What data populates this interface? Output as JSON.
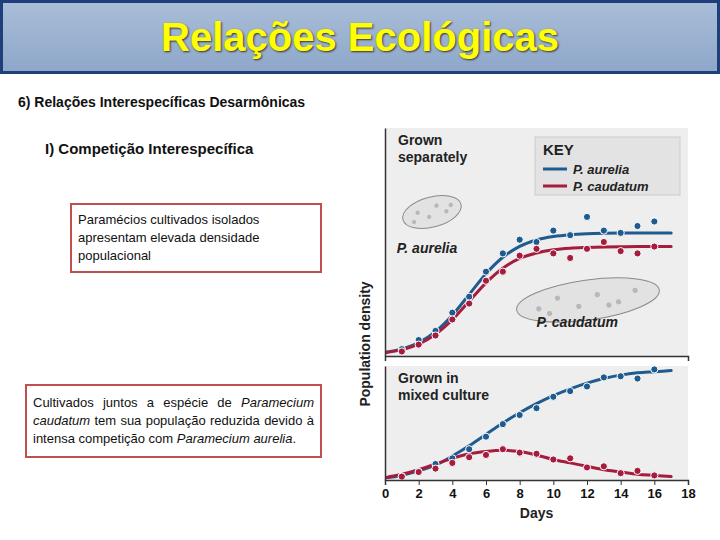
{
  "page": {
    "title": "Relações Ecológicas",
    "subtitle": "6) Relações Interespecíficas Desarmônicas",
    "heading": "I) Competição Interespecífica",
    "box1": "Paramécios cultivados isolados apresentam elevada densidade populacional",
    "box2": [
      {
        "text": "Cultivados juntos a espécie de "
      },
      {
        "text": "Paramecium caudatum",
        "italic": true
      },
      {
        "text": " tem sua população reduzida devido à intensa competição com "
      },
      {
        "text": "Paramecium aurelia",
        "italic": true
      },
      {
        "text": "."
      }
    ]
  },
  "chart_data": [
    {
      "type": "line",
      "title": "Grown\nseparately",
      "ylabel": "Population density",
      "xlim": [
        0,
        18
      ],
      "ylim": [
        0,
        100
      ],
      "tick_labels": false,
      "legend": "upper right",
      "legend_title": "KEY",
      "annotations": [
        {
          "text": "P. aurelia",
          "x": 0.7,
          "y": 45
        },
        {
          "text": "P. caudatum",
          "x": 9,
          "y": 12.7
        }
      ],
      "series": [
        {
          "name": "P. aurelia",
          "type": "line",
          "color": "#1f5b8e",
          "line_style": "solid",
          "x": [
            0,
            1,
            2,
            3,
            4,
            5,
            6,
            7,
            8,
            9,
            10,
            11,
            12,
            13,
            14,
            15,
            16,
            17
          ],
          "values": [
            1.6,
            3.1,
            5.9,
            10.7,
            17.9,
            27,
            36.1,
            43.3,
            48.1,
            50.9,
            52.4,
            53.2,
            53.6,
            53.8,
            53.9,
            54,
            54,
            54
          ]
        },
        {
          "name": "P. caudatum",
          "type": "line",
          "color": "#a51c3c",
          "line_style": "solid",
          "x": [
            0,
            1,
            2,
            3,
            4,
            5,
            6,
            7,
            8,
            9,
            10,
            11,
            12,
            13,
            14,
            15,
            16,
            17
          ],
          "values": [
            1.4,
            2.8,
            5.2,
            9.5,
            15.9,
            24,
            32.1,
            38.5,
            42.8,
            45.2,
            46.6,
            47.3,
            47.6,
            47.8,
            47.9,
            48,
            48,
            48
          ]
        },
        {
          "type": "scatter",
          "color": "#1f5b8e",
          "marker": "circle",
          "x": [
            1,
            2,
            3,
            4,
            5,
            6,
            7,
            8,
            9,
            10,
            11,
            12,
            13,
            14,
            15,
            16
          ],
          "values": [
            3,
            7,
            11,
            19,
            26,
            37,
            45,
            51,
            50,
            55,
            53,
            61,
            55,
            54,
            57,
            59
          ]
        },
        {
          "type": "scatter",
          "color": "#a51c3c",
          "marker": "circle",
          "x": [
            1,
            2,
            3,
            4,
            5,
            6,
            7,
            8,
            9,
            10,
            11,
            12,
            13,
            14,
            15,
            16
          ],
          "values": [
            2,
            5,
            9,
            16,
            23,
            33,
            37,
            44,
            47,
            45,
            43,
            47,
            50,
            46,
            45,
            48
          ]
        }
      ]
    },
    {
      "type": "line",
      "title": "Grown in\nmixed culture",
      "xlabel": "Days",
      "xlim": [
        0,
        18
      ],
      "ylim": [
        0,
        100
      ],
      "xticks": [
        0,
        2,
        4,
        6,
        8,
        10,
        12,
        14,
        16,
        18
      ],
      "tick_labels": "x",
      "series": [
        {
          "type": "line",
          "color": "#1f5b8e",
          "line_style": "solid",
          "x": [
            0,
            1,
            2,
            3,
            4,
            5,
            6,
            7,
            8,
            9,
            10,
            11,
            12,
            13,
            14,
            15,
            16,
            17
          ],
          "values": [
            2,
            4,
            8,
            13,
            21,
            30,
            40,
            50,
            59,
            67,
            74,
            80,
            85,
            89,
            92,
            94,
            95,
            96
          ]
        },
        {
          "type": "line",
          "color": "#a51c3c",
          "line_style": "solid",
          "x": [
            0,
            1,
            2,
            3,
            4,
            5,
            6,
            7,
            8,
            9,
            10,
            11,
            12,
            13,
            14,
            15,
            16,
            17
          ],
          "values": [
            2,
            5,
            9,
            14,
            19,
            23,
            25,
            26,
            25,
            22,
            18,
            15,
            12,
            9,
            7,
            5,
            4,
            3
          ]
        },
        {
          "type": "scatter",
          "color": "#1f5b8e",
          "marker": "circle",
          "x": [
            1,
            2,
            3,
            4,
            5,
            6,
            7,
            8,
            9,
            10,
            11,
            12,
            13,
            14,
            15,
            16
          ],
          "values": [
            3,
            7,
            14,
            19,
            27,
            38,
            49,
            57,
            63,
            73,
            78,
            82,
            90,
            91,
            89,
            97
          ]
        },
        {
          "type": "scatter",
          "color": "#a51c3c",
          "marker": "circle",
          "x": [
            1,
            2,
            3,
            4,
            5,
            6,
            7,
            8,
            9,
            10,
            11,
            12,
            13,
            14,
            15,
            16
          ],
          "values": [
            3,
            7,
            10,
            15,
            20,
            22,
            27,
            24,
            23,
            18,
            19,
            11,
            12,
            6,
            8,
            4
          ]
        }
      ]
    }
  ]
}
